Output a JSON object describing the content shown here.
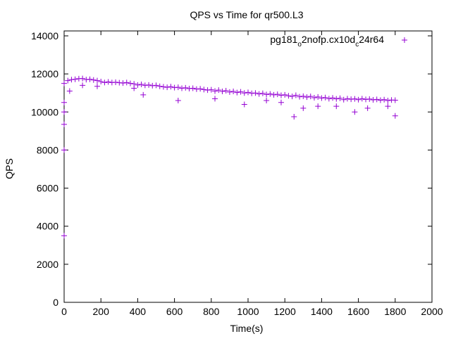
{
  "chart_data": {
    "type": "scatter",
    "title": "QPS vs Time for qr500.L3",
    "xlabel": "Time(s)",
    "ylabel": "QPS",
    "xlim": [
      0,
      2000
    ],
    "ylim": [
      0,
      14000
    ],
    "xticks": [
      0,
      200,
      400,
      600,
      800,
      1000,
      1200,
      1400,
      1600,
      1800,
      2000
    ],
    "yticks": [
      0,
      2000,
      4000,
      6000,
      8000,
      10000,
      12000,
      14000
    ],
    "grid": false,
    "legend_position": "top-right",
    "series": [
      {
        "name_parts": [
          "pg181",
          "o",
          "2nofp.cx10d",
          "c",
          "24r64"
        ],
        "name": "pg181_o2nofp.cx10d_c24r64",
        "color": "#9400d3",
        "marker": "plus",
        "x_step": 20,
        "y": [
          11500,
          11650,
          11700,
          11720,
          11750,
          11760,
          11700,
          11720,
          11680,
          11650,
          11600,
          11550,
          11580,
          11550,
          11560,
          11540,
          11520,
          11550,
          11500,
          11480,
          11420,
          11450,
          11400,
          11420,
          11380,
          11400,
          11350,
          11320,
          11300,
          11330,
          11280,
          11300,
          11250,
          11270,
          11230,
          11250,
          11200,
          11220,
          11180,
          11150,
          11170,
          11100,
          11150,
          11080,
          11120,
          11050,
          11080,
          11020,
          11060,
          11000,
          11030,
          10980,
          11000,
          10950,
          10980,
          10920,
          10950,
          10900,
          10930,
          10880,
          10900,
          10850,
          10820,
          10880,
          10800,
          10830,
          10780,
          10820,
          10750,
          10790,
          10730,
          10760,
          10700,
          10740,
          10690,
          10720,
          10650,
          10700,
          10670,
          10690,
          10650,
          10700,
          10660,
          10680,
          10640,
          10660,
          10620,
          10650,
          10600,
          10630,
          10620
        ],
        "extra_points": [
          [
            0,
            3500
          ],
          [
            0,
            8000
          ],
          [
            0,
            9350
          ],
          [
            0,
            10000
          ],
          [
            0,
            10500
          ],
          [
            30,
            11100
          ],
          [
            100,
            11400
          ],
          [
            180,
            11350
          ],
          [
            380,
            11250
          ],
          [
            430,
            10900
          ],
          [
            620,
            10600
          ],
          [
            820,
            10700
          ],
          [
            980,
            10400
          ],
          [
            1100,
            10600
          ],
          [
            1180,
            10500
          ],
          [
            1250,
            9750
          ],
          [
            1300,
            10200
          ],
          [
            1380,
            10300
          ],
          [
            1480,
            10300
          ],
          [
            1580,
            10000
          ],
          [
            1650,
            10200
          ],
          [
            1760,
            10300
          ],
          [
            1800,
            9800
          ]
        ]
      }
    ]
  }
}
